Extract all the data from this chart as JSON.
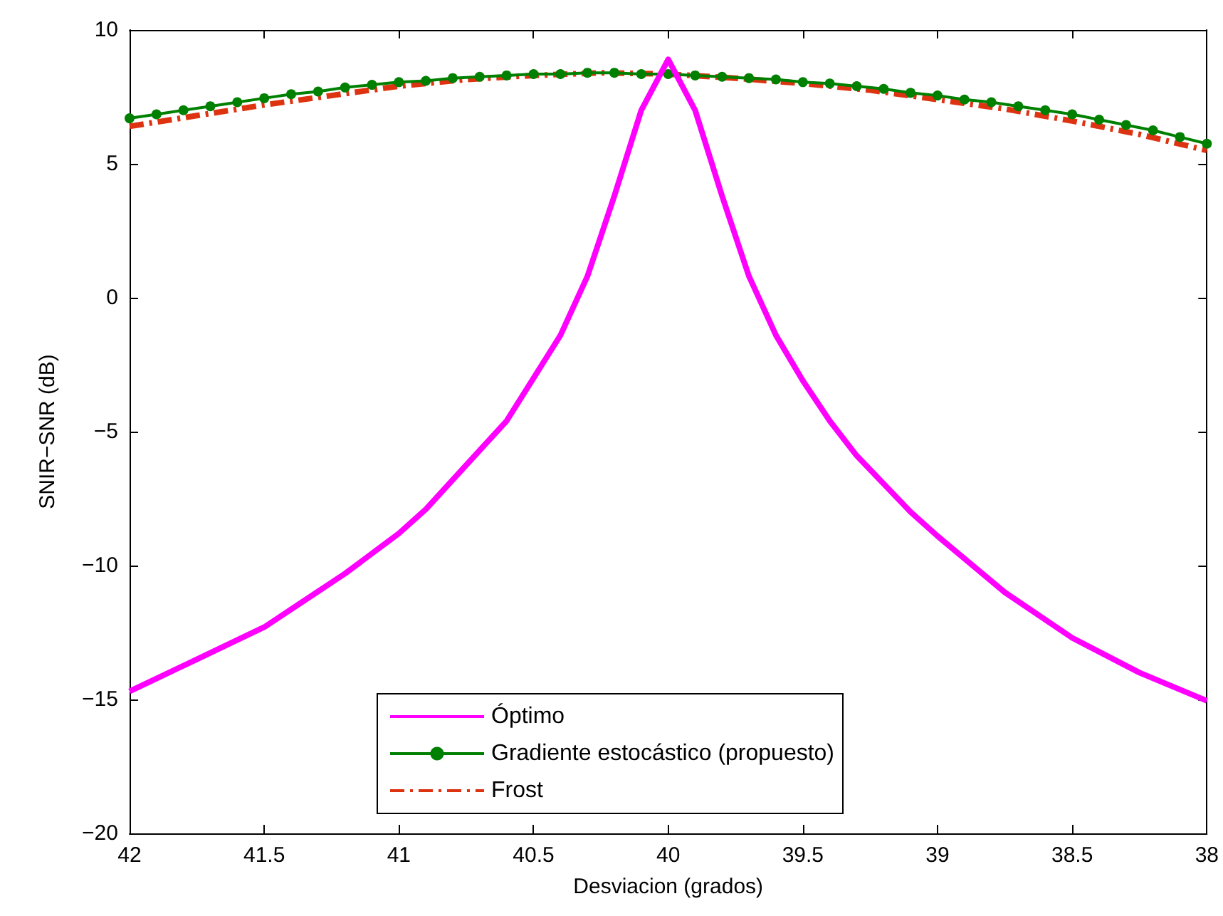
{
  "chart_data": {
    "type": "line",
    "xlabel": "Desviacion (grados)",
    "ylabel": "SNIR−SNR (dB)",
    "xlim": [
      42,
      38
    ],
    "xticks": [
      42,
      41.5,
      41,
      40.5,
      40,
      39.5,
      39,
      38.5,
      38
    ],
    "ylim": [
      -20,
      10
    ],
    "yticks": [
      -20,
      -15,
      -10,
      -5,
      0,
      5,
      10
    ],
    "grid": false,
    "legend": "bottom",
    "series": [
      {
        "name": "Óptimo",
        "color": "#ff00ff",
        "marker": "none",
        "line_style": "solid",
        "x": [
          42,
          41.75,
          41.5,
          41.35,
          41.2,
          41,
          40.9,
          40.7,
          40.6,
          40.5,
          40.4,
          40.3,
          40.2,
          40.1,
          40,
          39.9,
          39.8,
          39.7,
          39.6,
          39.5,
          39.4,
          39.3,
          39.1,
          39,
          38.75,
          38.5,
          38.25,
          38
        ],
        "values": [
          -14.7,
          -13.5,
          -12.3,
          -11.3,
          -10.3,
          -8.8,
          -7.9,
          -5.7,
          -4.6,
          -3.0,
          -1.4,
          0.8,
          3.8,
          7.0,
          8.9,
          7.0,
          3.8,
          0.8,
          -1.4,
          -3.1,
          -4.6,
          -5.9,
          -8.0,
          -8.9,
          -11.0,
          -12.7,
          -14.0,
          -15.05
        ]
      },
      {
        "name": "Gradiente estocástico (propuesto)",
        "color": "#008000",
        "marker": "circle",
        "line_style": "solid",
        "x": [
          42,
          41.9,
          41.8,
          41.7,
          41.6,
          41.5,
          41.4,
          41.3,
          41.2,
          41.1,
          41,
          40.9,
          40.8,
          40.7,
          40.6,
          40.5,
          40.4,
          40.3,
          40.2,
          40.1,
          40,
          39.9,
          39.8,
          39.7,
          39.6,
          39.5,
          39.4,
          39.3,
          39.2,
          39.1,
          39,
          38.9,
          38.8,
          38.7,
          38.6,
          38.5,
          38.4,
          38.3,
          38.2,
          38.1,
          38
        ],
        "values": [
          6.7,
          6.85,
          7.0,
          7.15,
          7.3,
          7.45,
          7.6,
          7.7,
          7.85,
          7.95,
          8.05,
          8.1,
          8.2,
          8.25,
          8.3,
          8.35,
          8.35,
          8.4,
          8.4,
          8.35,
          8.35,
          8.3,
          8.25,
          8.2,
          8.15,
          8.05,
          8.0,
          7.9,
          7.8,
          7.65,
          7.55,
          7.4,
          7.3,
          7.15,
          7.0,
          6.85,
          6.65,
          6.45,
          6.25,
          6.0,
          5.75
        ]
      },
      {
        "name": "Frost",
        "color": "#dd3311",
        "marker": "none",
        "line_style": "dashed",
        "x": [
          42,
          41.75,
          41.5,
          41.25,
          41,
          40.75,
          40.5,
          40.25,
          40,
          39.75,
          39.5,
          39.25,
          39,
          38.75,
          38.5,
          38.25,
          38
        ],
        "values": [
          6.4,
          6.8,
          7.2,
          7.55,
          7.9,
          8.15,
          8.3,
          8.4,
          8.35,
          8.2,
          8.0,
          7.75,
          7.4,
          7.05,
          6.6,
          6.1,
          5.5
        ]
      }
    ]
  }
}
